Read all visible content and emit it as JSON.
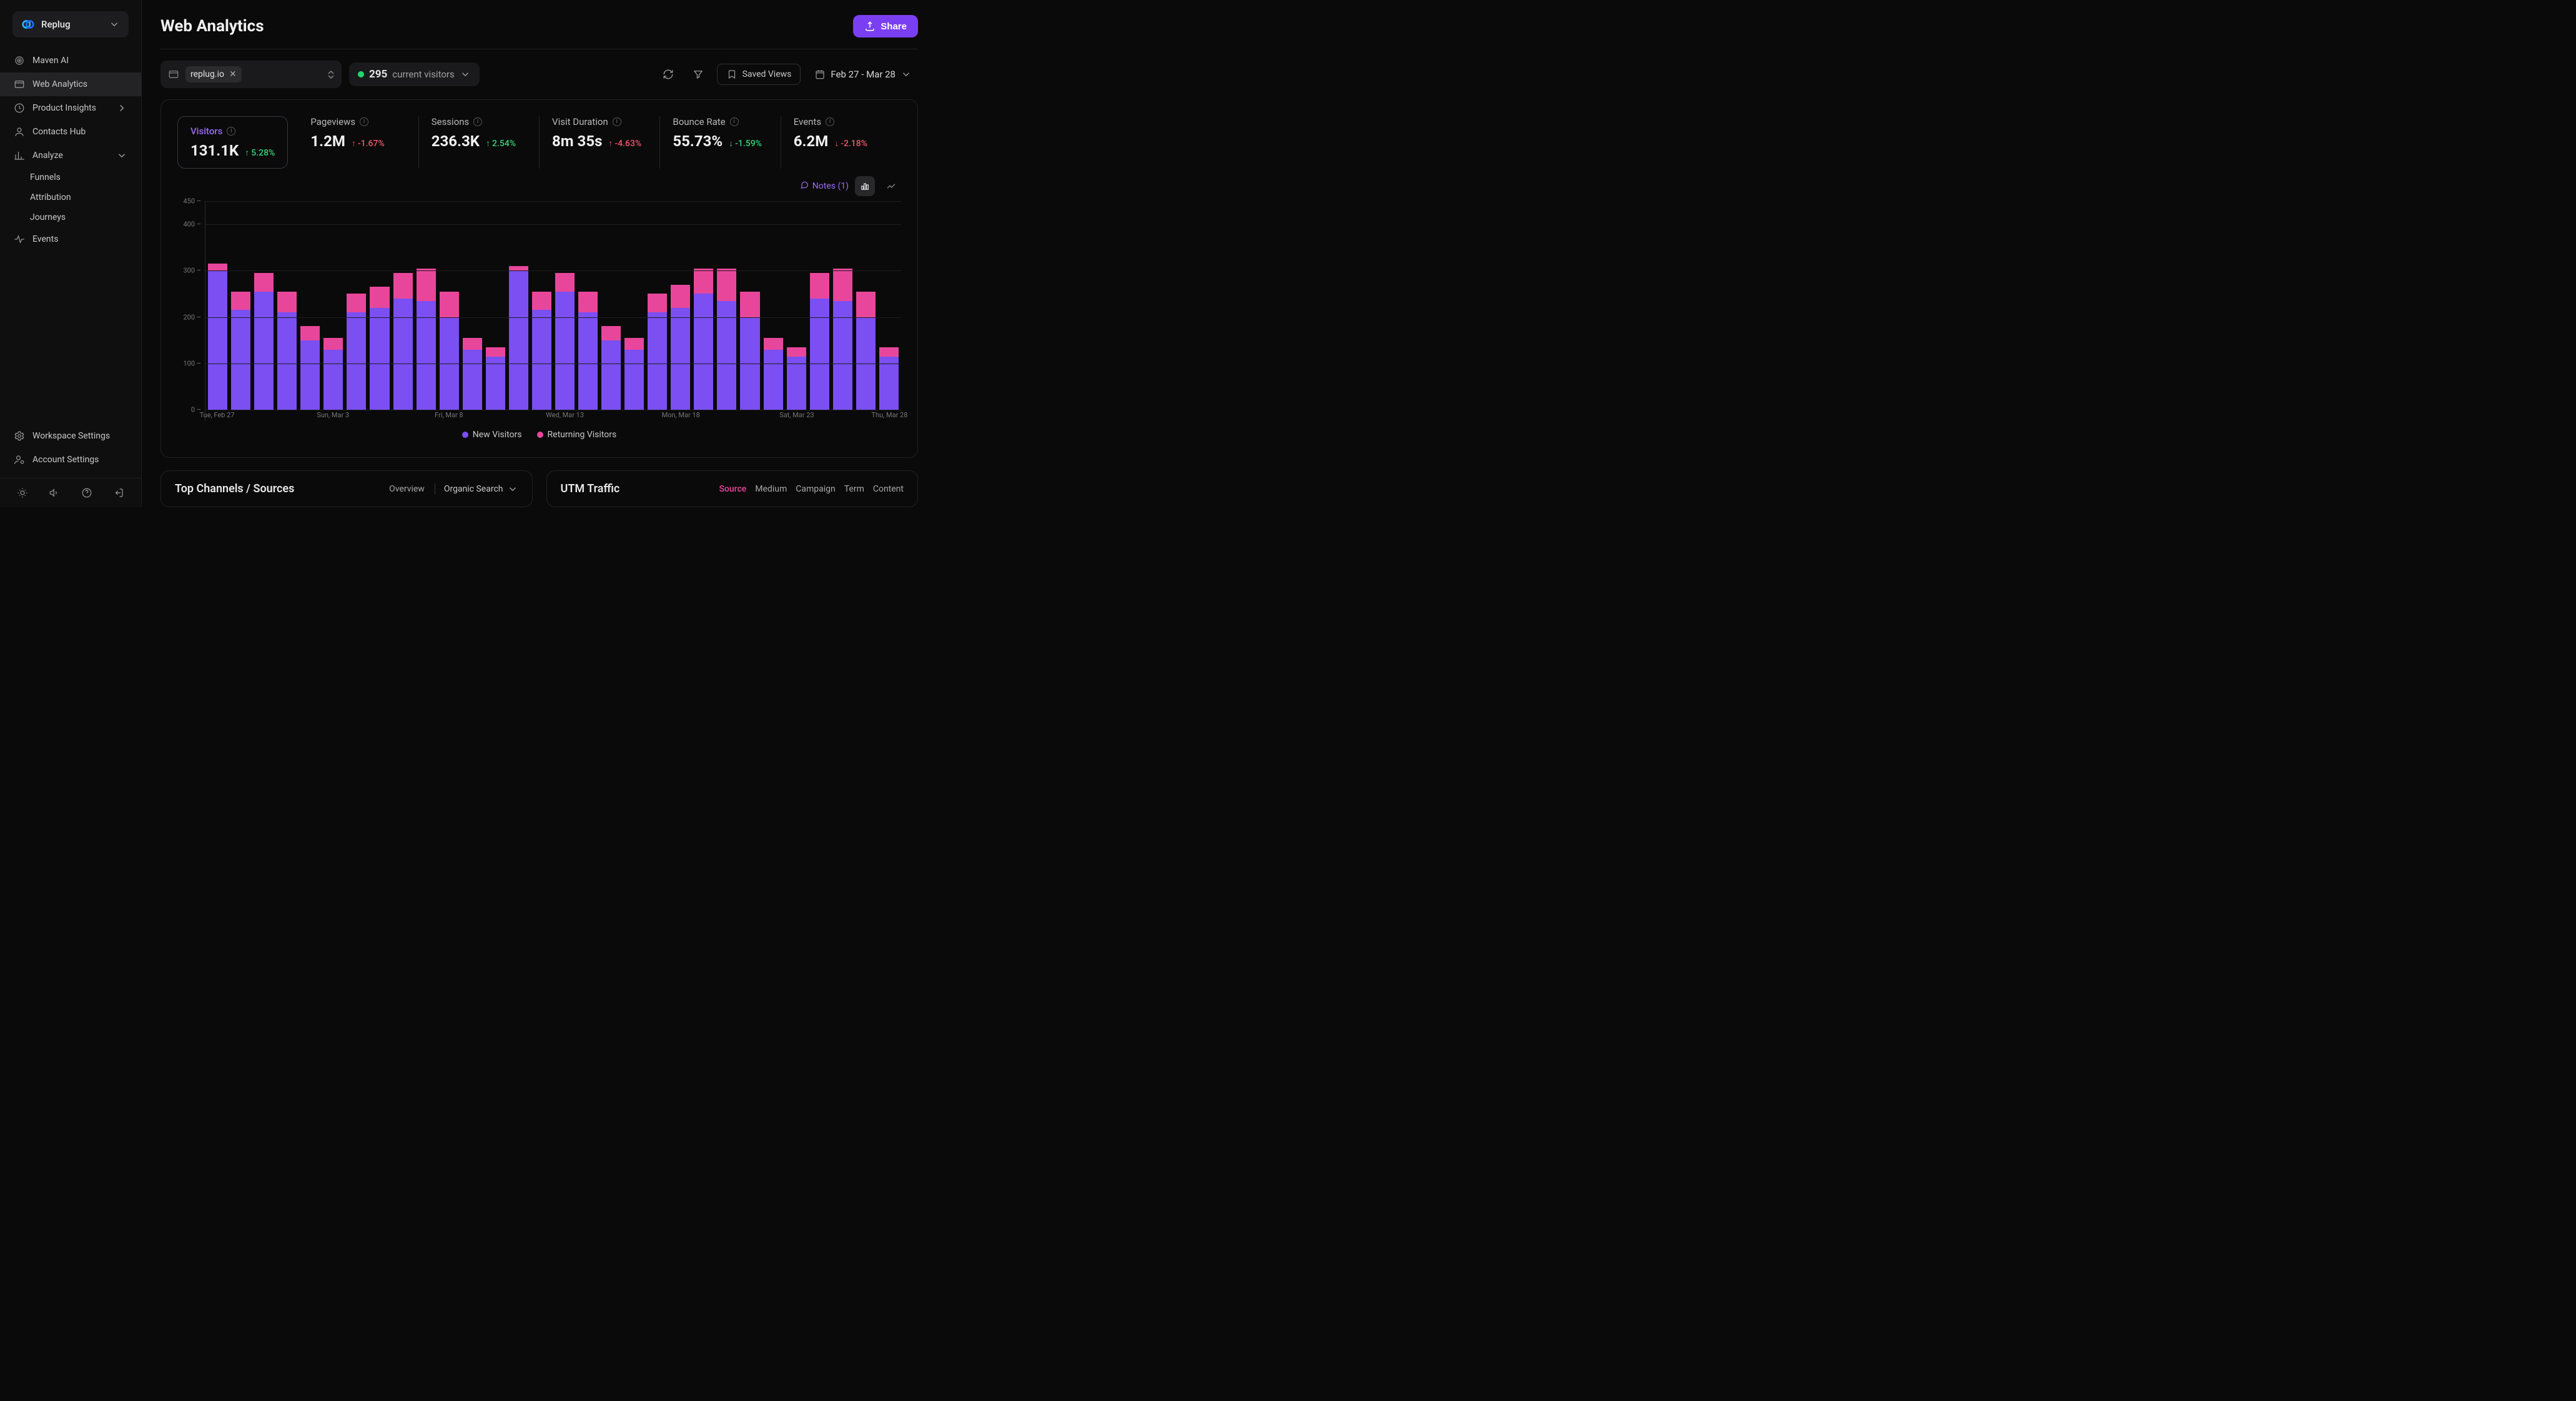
{
  "brand": {
    "name": "Replug"
  },
  "nav": {
    "maven": "Maven AI",
    "web_analytics": "Web Analytics",
    "product_insights": "Product Insights",
    "contacts": "Contacts Hub",
    "analyze": "Analyze",
    "funnels": "Funnels",
    "attribution": "Attribution",
    "journeys": "Journeys",
    "events": "Events",
    "workspace": "Workspace Settings",
    "account": "Account Settings"
  },
  "header": {
    "title": "Web Analytics",
    "share": "Share"
  },
  "controls": {
    "domain": "replug.io",
    "visitors_count": "295",
    "visitors_label": "current visitors",
    "saved_views": "Saved Views",
    "date_range": "Feb 27 - Mar 28"
  },
  "metrics": [
    {
      "label": "Visitors",
      "value": "131.1K",
      "delta": "5.28%",
      "dir": "up",
      "good": true,
      "selected": true
    },
    {
      "label": "Pageviews",
      "value": "1.2M",
      "delta": "-1.67%",
      "dir": "up",
      "good": false
    },
    {
      "label": "Sessions",
      "value": "236.3K",
      "delta": "2.54%",
      "dir": "up",
      "good": true
    },
    {
      "label": "Visit Duration",
      "value": "8m 35s",
      "delta": "-4.63%",
      "dir": "up",
      "good": false
    },
    {
      "label": "Bounce Rate",
      "value": "55.73%",
      "delta": "-1.59%",
      "dir": "down",
      "good": true
    },
    {
      "label": "Events",
      "value": "6.2M",
      "delta": "-2.18%",
      "dir": "down",
      "good": false
    }
  ],
  "notes_label": "Notes (1)",
  "chart": {
    "ymax": 450,
    "yticks": [
      0,
      100,
      200,
      300,
      400,
      450
    ],
    "colors": {
      "new": "#7b4ff2",
      "ret": "#e8469b",
      "grid": "#1d1d1f",
      "axis_text": "#777"
    },
    "bar_gap_pct": 18,
    "data": [
      {
        "new": 300,
        "ret": 15
      },
      {
        "new": 215,
        "ret": 40
      },
      {
        "new": 255,
        "ret": 40
      },
      {
        "new": 210,
        "ret": 45
      },
      {
        "new": 150,
        "ret": 30
      },
      {
        "new": 130,
        "ret": 25
      },
      {
        "new": 210,
        "ret": 40
      },
      {
        "new": 220,
        "ret": 45
      },
      {
        "new": 240,
        "ret": 55
      },
      {
        "new": 235,
        "ret": 70
      },
      {
        "new": 200,
        "ret": 55
      },
      {
        "new": 130,
        "ret": 25
      },
      {
        "new": 115,
        "ret": 20
      },
      {
        "new": 300,
        "ret": 10
      },
      {
        "new": 215,
        "ret": 40
      },
      {
        "new": 255,
        "ret": 40
      },
      {
        "new": 210,
        "ret": 45
      },
      {
        "new": 150,
        "ret": 30
      },
      {
        "new": 130,
        "ret": 25
      },
      {
        "new": 210,
        "ret": 40
      },
      {
        "new": 220,
        "ret": 50
      },
      {
        "new": 250,
        "ret": 55
      },
      {
        "new": 235,
        "ret": 70
      },
      {
        "new": 200,
        "ret": 55
      },
      {
        "new": 130,
        "ret": 25
      },
      {
        "new": 115,
        "ret": 20
      },
      {
        "new": 240,
        "ret": 55
      },
      {
        "new": 235,
        "ret": 70
      },
      {
        "new": 200,
        "ret": 55
      },
      {
        "new": 115,
        "ret": 20
      }
    ],
    "x_labels": [
      {
        "i": 0,
        "text": "Tue, Feb 27"
      },
      {
        "i": 5,
        "text": "Sun, Mar 3"
      },
      {
        "i": 10,
        "text": "Fri, Mar 8"
      },
      {
        "i": 15,
        "text": "Wed, Mar 13"
      },
      {
        "i": 20,
        "text": "Mon, Mar 18"
      },
      {
        "i": 25,
        "text": "Sat, Mar 23"
      },
      {
        "i": 29,
        "text": "Thu, Mar 28"
      }
    ],
    "legend": {
      "new": "New Visitors",
      "ret": "Returning Visitors"
    }
  },
  "panels": {
    "channels_title": "Top Channels / Sources",
    "channels_tab_overview": "Overview",
    "channels_dropdown": "Organic Search",
    "utm_title": "UTM Traffic",
    "utm_tabs": [
      "Source",
      "Medium",
      "Campaign",
      "Term",
      "Content"
    ]
  }
}
